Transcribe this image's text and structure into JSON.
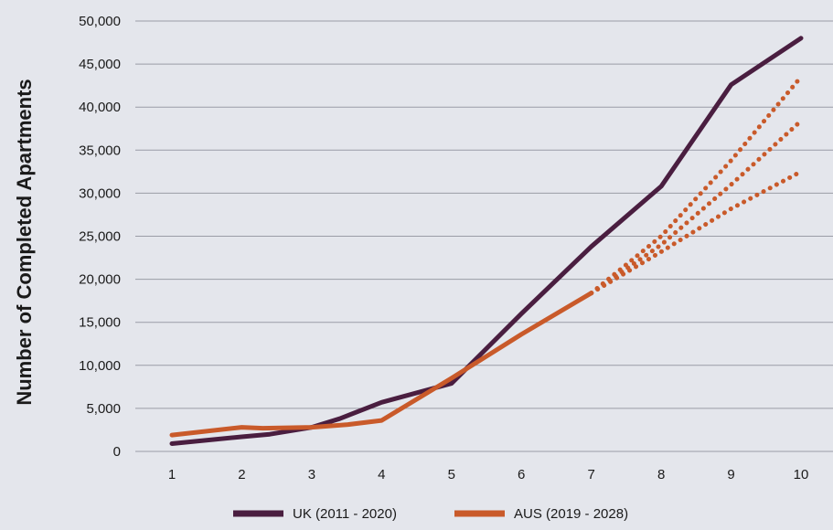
{
  "chart_data": {
    "type": "line",
    "title": "",
    "xlabel": "",
    "ylabel": "Number of Completed Apartments",
    "x": [
      1,
      2,
      3,
      4,
      5,
      6,
      7,
      8,
      9,
      10
    ],
    "xlim": [
      1,
      10
    ],
    "ylim": [
      0,
      50000
    ],
    "y_ticks": [
      "0",
      "5,000",
      "10,000",
      "15,000",
      "20,000",
      "25,000",
      "30,000",
      "35,000",
      "40,000",
      "45,000",
      "50,000"
    ],
    "x_ticks": [
      "1",
      "2",
      "3",
      "4",
      "5",
      "6",
      "7",
      "8",
      "9",
      "10"
    ],
    "grid": "horizontal",
    "legend_position": "bottom-center",
    "series": [
      {
        "name": "UK (2011 - 2020)",
        "color": "#4a1e40",
        "style": "solid",
        "points": [
          [
            1,
            900
          ],
          [
            2,
            1700
          ],
          [
            2.4,
            2000
          ],
          [
            3,
            2800
          ],
          [
            3.4,
            3800
          ],
          [
            4,
            5700
          ],
          [
            5,
            7900
          ],
          [
            6,
            16000
          ],
          [
            7,
            23800
          ],
          [
            8,
            30800
          ],
          [
            9,
            42600
          ],
          [
            10,
            48000
          ]
        ]
      },
      {
        "name": "AUS (2019 - 2028)",
        "color": "#c95a2a",
        "style": "solid",
        "points": [
          [
            1,
            1900
          ],
          [
            2,
            2800
          ],
          [
            2.3,
            2700
          ],
          [
            3,
            2800
          ],
          [
            3.5,
            3100
          ],
          [
            4,
            3600
          ],
          [
            5,
            8500
          ],
          [
            6,
            13600
          ],
          [
            7,
            18400
          ]
        ]
      },
      {
        "name": "",
        "color": "#c95a2a",
        "style": "dotted",
        "points": [
          [
            7,
            18400
          ],
          [
            8,
            25000
          ],
          [
            9,
            33800
          ],
          [
            10,
            43500
          ]
        ]
      },
      {
        "name": "",
        "color": "#c95a2a",
        "style": "dotted",
        "points": [
          [
            7,
            18400
          ],
          [
            8,
            24000
          ],
          [
            9,
            31000
          ],
          [
            10,
            38400
          ]
        ]
      },
      {
        "name": "",
        "color": "#c95a2a",
        "style": "dotted",
        "points": [
          [
            7,
            18400
          ],
          [
            8,
            23200
          ],
          [
            9,
            28200
          ],
          [
            10,
            32500
          ]
        ]
      }
    ]
  },
  "legend": [
    {
      "label": "UK (2011 - 2020)",
      "color": "#4a1e40"
    },
    {
      "label": "AUS (2019 - 2028)",
      "color": "#c95a2a"
    }
  ]
}
